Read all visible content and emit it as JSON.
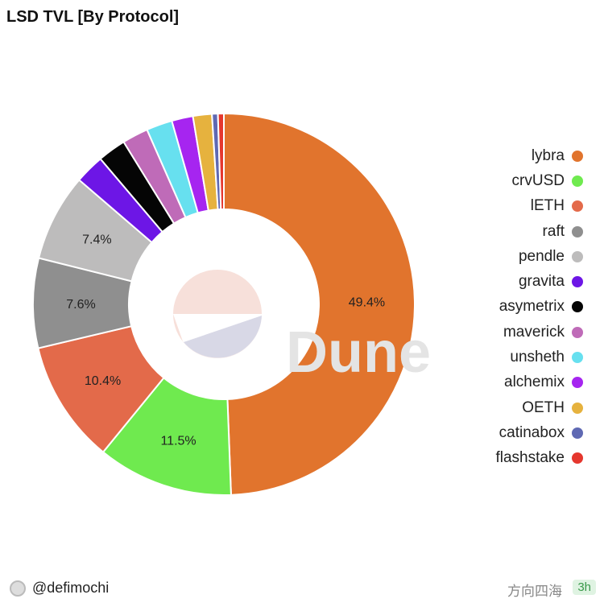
{
  "chart_data": {
    "type": "pie",
    "variant": "donut",
    "title": "LSD TVL [By Protocol]",
    "categories": [
      "lybra",
      "crvUSD",
      "lETH",
      "raft",
      "pendle",
      "gravita",
      "asymetrix",
      "maverick",
      "unsheth",
      "alchemix",
      "OETH",
      "catinabox",
      "flashstake"
    ],
    "values": [
      49.4,
      11.5,
      10.4,
      7.6,
      7.4,
      2.5,
      2.4,
      2.2,
      2.2,
      1.8,
      1.6,
      0.5,
      0.5
    ],
    "data_labels": [
      "49.4%",
      "11.5%",
      "10.4%",
      "7.6%",
      "7.4%",
      "",
      "",
      "",
      "",
      "",
      "",
      "",
      ""
    ],
    "colors": [
      "#e1742d",
      "#6fea4f",
      "#e36a4a",
      "#8f8f8f",
      "#bdbcbc",
      "#6d16e6",
      "#050505",
      "#bf6bb8",
      "#67e0ef",
      "#a625f0",
      "#e6b23e",
      "#5f69b3",
      "#e5372e"
    ],
    "legend_position": "right",
    "unit": "%"
  },
  "watermark": "Dune",
  "footer": {
    "author": "@defimochi",
    "wechat_watermark": "方向四海",
    "badge": "3h"
  }
}
